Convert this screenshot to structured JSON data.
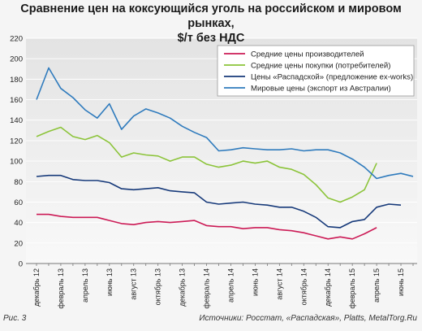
{
  "title_line1": "Сравнение цен на коксующийся уголь на российском и мировом рынках,",
  "title_line2": "$/т без НДС",
  "figure_label": "Рис. 3",
  "source": "Источники: Росстат, «Распадская», Platts, MetalTorg.Ru",
  "chart_data": {
    "type": "line",
    "title": "Сравнение цен на коксующийся уголь на российском и мировом рынках, $/т без НДС",
    "ylim": [
      0,
      220
    ],
    "yticks": [
      0,
      20,
      40,
      60,
      80,
      100,
      120,
      140,
      160,
      180,
      200,
      220
    ],
    "grid": true,
    "legend_position": "top-right",
    "x_labels": [
      "декабрь 12",
      "февраль 13",
      "апрель 13",
      "июнь 13",
      "август 13",
      "октябрь 13",
      "декабрь 13",
      "февраль 14",
      "апрель 14",
      "июнь 14",
      "август 14",
      "октябрь 14",
      "декабрь 14",
      "февраль 15",
      "апрель 15",
      "июнь 15"
    ],
    "x_months": [
      "дек 12",
      "янв 13",
      "фев 13",
      "мар 13",
      "апр 13",
      "май 13",
      "июн 13",
      "июл 13",
      "авг 13",
      "сен 13",
      "окт 13",
      "ноя 13",
      "дек 13",
      "янв 14",
      "фев 14",
      "мар 14",
      "апр 14",
      "май 14",
      "июн 14",
      "июл 14",
      "авг 14",
      "сен 14",
      "окт 14",
      "ноя 14",
      "дек 14",
      "янв 15",
      "фев 15",
      "мар 15",
      "апр 15",
      "май 15",
      "июн 15",
      "июл 15"
    ],
    "series": [
      {
        "name": "Средние цены производителей",
        "color": "#cc1b56",
        "values": [
          48,
          48,
          46,
          45,
          45,
          45,
          42,
          39,
          38,
          40,
          41,
          40,
          41,
          42,
          37,
          36,
          36,
          34,
          35,
          35,
          33,
          32,
          30,
          27,
          24,
          26,
          24,
          29,
          35,
          null,
          null,
          null
        ]
      },
      {
        "name": "Средние цены покупки (потребителей)",
        "color": "#8cc43a",
        "values": [
          124,
          129,
          133,
          124,
          121,
          125,
          118,
          104,
          108,
          106,
          105,
          100,
          104,
          104,
          97,
          94,
          96,
          100,
          98,
          100,
          94,
          92,
          87,
          77,
          64,
          60,
          65,
          72,
          98,
          null,
          null,
          null
        ]
      },
      {
        "name": "Цены «Распадской» (предложение ex-works)",
        "color": "#173a7a",
        "values": [
          85,
          86,
          86,
          82,
          81,
          81,
          79,
          73,
          72,
          73,
          74,
          71,
          70,
          69,
          60,
          58,
          59,
          60,
          58,
          57,
          55,
          55,
          51,
          45,
          36,
          35,
          41,
          43,
          55,
          58,
          57,
          null
        ]
      },
      {
        "name": "Мировые цены (экспорт из Австралии)",
        "color": "#2f7bbd",
        "values": [
          160,
          191,
          171,
          162,
          150,
          142,
          156,
          131,
          144,
          151,
          147,
          142,
          134,
          128,
          123,
          110,
          111,
          113,
          112,
          111,
          111,
          112,
          110,
          111,
          111,
          108,
          102,
          94,
          83,
          86,
          88,
          85
        ]
      }
    ]
  }
}
